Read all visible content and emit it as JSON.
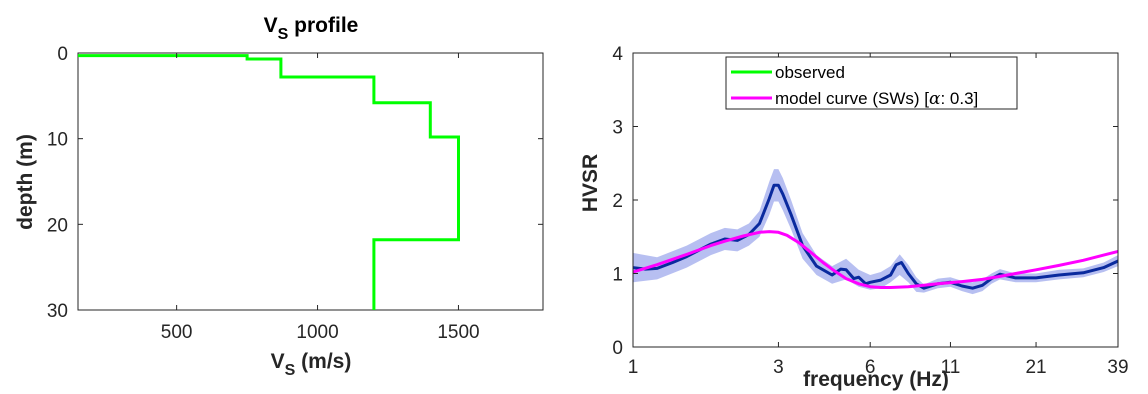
{
  "chart_data": [
    {
      "type": "line",
      "title_main": "V",
      "title_sub": "S",
      "title_rest": " profile",
      "xlabel_main": "V",
      "xlabel_sub": "S",
      "xlabel_rest": " (m/s)",
      "ylabel": "depth (m)",
      "xlim": [
        150,
        1800
      ],
      "ylim": [
        0,
        30
      ],
      "y_reversed": true,
      "xticks": [
        500,
        1000,
        1500
      ],
      "xtick_labels": [
        "500",
        "1000",
        "1500"
      ],
      "yticks": [
        0,
        10,
        20,
        30
      ],
      "ytick_labels": [
        "0",
        "10",
        "20",
        "30"
      ],
      "grid": false,
      "series": [
        {
          "color": "#00ff00",
          "points": [
            [
              150,
              0.3
            ],
            [
              750,
              0.3
            ],
            [
              750,
              0.7
            ],
            [
              870,
              0.7
            ],
            [
              870,
              2.8
            ],
            [
              1200,
              2.8
            ],
            [
              1200,
              5.8
            ],
            [
              1400,
              5.8
            ],
            [
              1400,
              9.8
            ],
            [
              1500,
              9.8
            ],
            [
              1500,
              21.8
            ],
            [
              1200,
              21.8
            ],
            [
              1200,
              30
            ]
          ]
        }
      ]
    },
    {
      "type": "line",
      "xlabel": "frequency (Hz)",
      "ylabel": "HVSR",
      "x_scale": "log",
      "xlim": [
        1,
        39
      ],
      "ylim": [
        0,
        4
      ],
      "xticks": [
        1,
        3,
        6,
        11,
        21,
        39
      ],
      "xtick_labels": [
        "1",
        "3",
        "6",
        "11",
        "21",
        "39"
      ],
      "yticks": [
        0,
        1,
        2,
        3,
        4
      ],
      "ytick_labels": [
        "0",
        "1",
        "2",
        "3",
        "4"
      ],
      "grid": false,
      "legend_position": "top-center",
      "legend": [
        {
          "label": "observed",
          "color": "#00ff00"
        },
        {
          "label_pre": "model curve (SWs) [",
          "label_alpha": "α",
          "label_post": ": 0.3]",
          "color": "#ff00ff"
        }
      ],
      "band": {
        "color": "#aab4ef",
        "x": [
          1.0,
          1.2,
          1.5,
          1.8,
          2.0,
          2.2,
          2.4,
          2.6,
          2.8,
          2.9,
          3.0,
          3.1,
          3.3,
          3.6,
          4.0,
          4.5,
          5.0,
          5.5,
          6.0,
          6.5,
          7.0,
          7.5,
          8.0,
          8.5,
          9.0,
          10.0,
          11.0,
          12.0,
          13.0,
          14.0,
          15.0,
          16.0,
          18.0,
          21.0,
          25.0,
          30.0,
          35.0,
          39.0
        ],
        "upper": [
          1.28,
          1.22,
          1.38,
          1.55,
          1.62,
          1.6,
          1.68,
          1.85,
          2.25,
          2.42,
          2.42,
          2.3,
          2.0,
          1.55,
          1.25,
          1.1,
          1.2,
          1.05,
          0.98,
          1.02,
          1.1,
          1.26,
          1.12,
          0.95,
          0.85,
          0.93,
          0.95,
          0.9,
          0.88,
          0.92,
          1.0,
          1.06,
          1.0,
          1.0,
          1.05,
          1.07,
          1.15,
          1.25
        ],
        "lower": [
          0.88,
          0.92,
          1.08,
          1.25,
          1.32,
          1.3,
          1.38,
          1.5,
          1.8,
          1.98,
          1.98,
          1.86,
          1.6,
          1.2,
          0.98,
          0.86,
          0.92,
          0.82,
          0.78,
          0.8,
          0.88,
          0.98,
          0.88,
          0.75,
          0.74,
          0.8,
          0.82,
          0.76,
          0.72,
          0.76,
          0.86,
          0.92,
          0.88,
          0.88,
          0.92,
          0.95,
          1.02,
          1.1
        ]
      },
      "series": [
        {
          "name": "observed-mean",
          "color": "#0a2a9e",
          "x": [
            1.0,
            1.1,
            1.2,
            1.35,
            1.5,
            1.65,
            1.8,
            2.0,
            2.2,
            2.4,
            2.6,
            2.8,
            2.9,
            3.0,
            3.1,
            3.3,
            3.6,
            4.0,
            4.5,
            4.8,
            5.0,
            5.3,
            5.5,
            5.8,
            6.0,
            6.5,
            7.0,
            7.3,
            7.6,
            8.0,
            8.5,
            9.0,
            10.0,
            11.0,
            12.0,
            13.0,
            14.0,
            15.0,
            16.0,
            18.0,
            21.0,
            25.0,
            30.0,
            35.0,
            39.0
          ],
          "y": [
            1.08,
            1.06,
            1.07,
            1.15,
            1.23,
            1.32,
            1.4,
            1.47,
            1.45,
            1.53,
            1.68,
            2.02,
            2.2,
            2.2,
            2.08,
            1.8,
            1.38,
            1.1,
            0.98,
            1.06,
            1.05,
            0.93,
            0.95,
            0.86,
            0.88,
            0.91,
            0.98,
            1.12,
            1.15,
            1.0,
            0.86,
            0.8,
            0.86,
            0.88,
            0.83,
            0.8,
            0.84,
            0.93,
            0.99,
            0.94,
            0.94,
            0.98,
            1.01,
            1.08,
            1.17
          ]
        },
        {
          "name": "model",
          "color": "#ff00ff",
          "x": [
            1.0,
            1.2,
            1.5,
            1.8,
            2.0,
            2.3,
            2.6,
            2.8,
            3.0,
            3.2,
            3.5,
            3.8,
            4.2,
            4.6,
            5.0,
            5.5,
            6.0,
            6.5,
            7.0,
            8.0,
            9.0,
            10.0,
            12.0,
            14.0,
            16.0,
            18.0,
            21.0,
            25.0,
            30.0,
            35.0,
            39.0
          ],
          "y": [
            1.02,
            1.12,
            1.26,
            1.38,
            1.44,
            1.51,
            1.56,
            1.57,
            1.56,
            1.52,
            1.42,
            1.3,
            1.15,
            1.03,
            0.93,
            0.86,
            0.82,
            0.81,
            0.81,
            0.82,
            0.84,
            0.86,
            0.89,
            0.92,
            0.96,
            1.0,
            1.05,
            1.11,
            1.18,
            1.25,
            1.3
          ]
        }
      ]
    }
  ]
}
